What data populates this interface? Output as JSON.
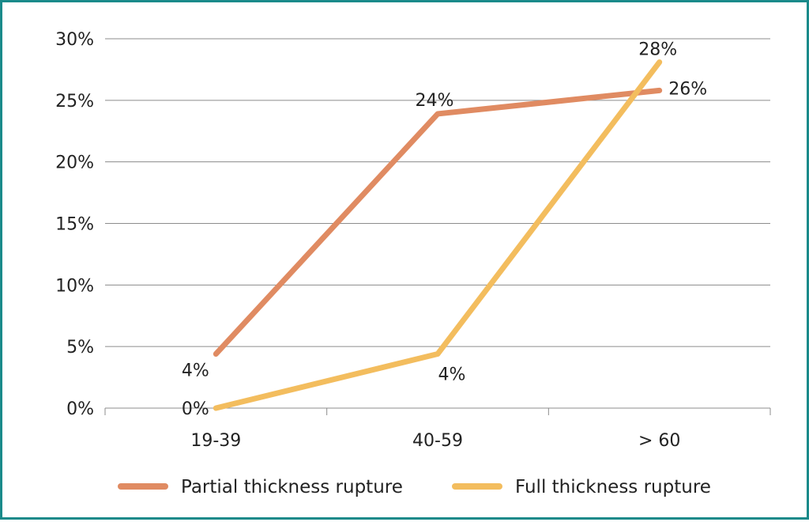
{
  "chart_data": {
    "type": "line",
    "categories": [
      "19-39",
      "40-59",
      "> 60"
    ],
    "y_ticks": [
      "0%",
      "5%",
      "10%",
      "15%",
      "20%",
      "25%",
      "30%"
    ],
    "ylim": [
      0,
      30
    ],
    "grid": true,
    "legend_position": "bottom",
    "series": [
      {
        "name": "Partial thickness rupture",
        "color": "#e08b62",
        "values": [
          4.4,
          23.9,
          25.8
        ],
        "labels": [
          "4%",
          "24%",
          "26%"
        ]
      },
      {
        "name": "Full thickness rupture",
        "color": "#f3bd5e",
        "values": [
          0,
          4.4,
          28.1
        ],
        "labels": [
          "0%",
          "4%",
          "28%"
        ]
      }
    ]
  }
}
